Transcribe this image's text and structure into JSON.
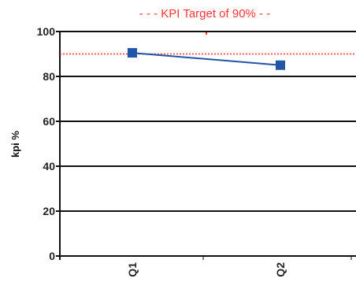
{
  "chart_data": {
    "type": "line",
    "categories": [
      "Q1",
      "Q2"
    ],
    "series": [
      {
        "values": [
          90.5,
          85
        ]
      }
    ],
    "target": {
      "label": "- - - KPI Target of 90% - -",
      "value": 90
    },
    "ylabel": "kpi %",
    "ylim": [
      0,
      100
    ],
    "yticks": [
      0,
      20,
      40,
      60,
      80,
      100
    ],
    "legend": "top",
    "grid": true,
    "colors": {
      "series": "#2155a8",
      "target": "#ff3333",
      "grid": "#111111"
    }
  }
}
